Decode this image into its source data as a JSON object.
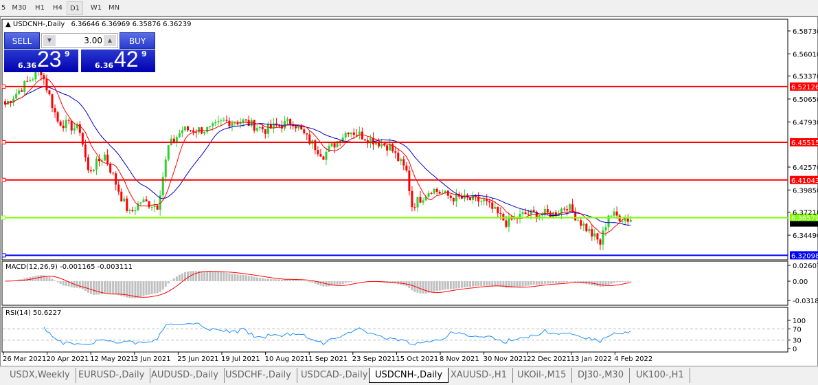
{
  "timeframes": [
    {
      "label": "5"
    },
    {
      "label": "M30"
    },
    {
      "label": "H1"
    },
    {
      "label": "H4"
    },
    {
      "label": "D1",
      "active": true
    },
    {
      "label": "W1"
    },
    {
      "label": "MN"
    }
  ],
  "header": {
    "symbol": "USDCNH-,Daily",
    "ohlc": "6.36646 6.36969 6.35876 6.36239"
  },
  "trade_panel": {
    "sell_label": "SELL",
    "buy_label": "BUY",
    "lots": "3.00",
    "sell_prefix": "6.36",
    "sell_big": "23",
    "sell_pip": "9",
    "buy_prefix": "6.36",
    "buy_big": "42",
    "buy_pip": "9"
  },
  "indicators": {
    "macd_label": "MACD(12,26,9) -0.001165 -0.003111",
    "rsi_label": "RSI(14) 50.6227"
  },
  "colors": {
    "bull": "#32cd32",
    "bear": "#ff0000",
    "fast_ma": "#ff0000",
    "slow_ma": "#0000c8",
    "macd_hist": "#c0c0c0",
    "macd_signal": "#ff0000",
    "rsi": "#1e90ff"
  },
  "chart_data": {
    "type": "candlestick",
    "price_axis": {
      "ticks": [
        "6.58730",
        "6.56010",
        "6.53370",
        "6.50650",
        "6.47930",
        "6.42570",
        "6.39850",
        "6.37210",
        "6.34490"
      ],
      "range": [
        6.318,
        6.6
      ]
    },
    "current_price": "6.36239",
    "levels": [
      {
        "price": "6.52126",
        "color": "#ff0000"
      },
      {
        "price": "6.45515",
        "color": "#ff0000"
      },
      {
        "price": "6.41043",
        "color": "#ff0000"
      },
      {
        "price": "6.36570",
        "color": "#7fff00"
      },
      {
        "price": "6.32098",
        "color": "#0000ff"
      }
    ],
    "date_labels": [
      "26 Mar 2021",
      "20 Apr 2021",
      "12 May 2021",
      "3 Jun 2021",
      "25 Jun 2021",
      "19 Jul 2021",
      "10 Aug 2021",
      "1 Sep 2021",
      "23 Sep 2021",
      "15 Oct 2021",
      "8 Nov 2021",
      "30 Nov 2021",
      "22 Dec 2021",
      "13 Jan 2022",
      "4 Feb 2022"
    ],
    "close_path": [
      [
        0,
        6.5
      ],
      [
        9,
        6.53
      ],
      [
        13,
        6.54
      ],
      [
        19,
        6.48
      ],
      [
        27,
        6.47
      ],
      [
        30,
        6.42
      ],
      [
        36,
        6.44
      ],
      [
        42,
        6.39
      ],
      [
        45,
        6.37
      ],
      [
        49,
        6.385
      ],
      [
        55,
        6.38
      ],
      [
        59,
        6.45
      ],
      [
        64,
        6.47
      ],
      [
        74,
        6.47
      ],
      [
        79,
        6.48
      ],
      [
        86,
        6.48
      ],
      [
        94,
        6.47
      ],
      [
        104,
        6.48
      ],
      [
        109,
        6.46
      ],
      [
        115,
        6.44
      ],
      [
        124,
        6.47
      ],
      [
        131,
        6.46
      ],
      [
        139,
        6.45
      ],
      [
        145,
        6.42
      ],
      [
        147,
        6.38
      ],
      [
        154,
        6.4
      ],
      [
        161,
        6.39
      ],
      [
        173,
        6.385
      ],
      [
        181,
        6.36
      ],
      [
        188,
        6.37
      ],
      [
        198,
        6.37
      ],
      [
        203,
        6.38
      ],
      [
        208,
        6.36
      ],
      [
        215,
        6.335
      ],
      [
        218,
        6.37
      ],
      [
        226,
        6.363
      ]
    ],
    "macd_axis": [
      "0.02607",
      "0.00",
      "-0.03187"
    ],
    "rsi_axis": [
      "100",
      "70",
      "30",
      "0"
    ]
  },
  "tabs": [
    {
      "label": "USDX,Weekly"
    },
    {
      "label": "EURUSD-,Daily"
    },
    {
      "label": "AUDUSD-,Daily"
    },
    {
      "label": "USDCHF-,Daily"
    },
    {
      "label": "USDCAD-,Daily"
    },
    {
      "label": "USDCNH-,Daily",
      "active": true
    },
    {
      "label": "XAUUSD-,H1"
    },
    {
      "label": "UKOil-,M15"
    },
    {
      "label": "DJ30-,M30"
    },
    {
      "label": "UK100-,H1"
    }
  ]
}
